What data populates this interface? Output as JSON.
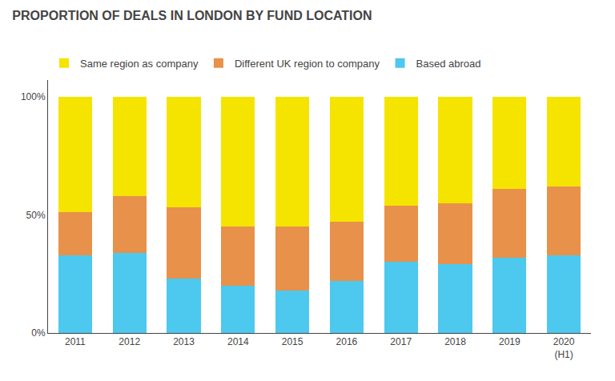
{
  "chart_data": {
    "type": "bar",
    "stacked": true,
    "title": "PROPORTION OF DEALS IN LONDON BY FUND LOCATION",
    "categories": [
      "2011",
      "2012",
      "2013",
      "2014",
      "2015",
      "2016",
      "2017",
      "2018",
      "2019",
      "2020\n(H1)"
    ],
    "series": [
      {
        "name": "Based abroad",
        "color": "#4DC8EE",
        "values": [
          33,
          34,
          23,
          20,
          18,
          22,
          30,
          29,
          32,
          33
        ]
      },
      {
        "name": "Different UK region to company",
        "color": "#E8914A",
        "values": [
          18,
          24,
          30,
          25,
          27,
          25,
          24,
          26,
          29,
          29
        ]
      },
      {
        "name": "Same region as company",
        "color": "#F5E400",
        "values": [
          49,
          42,
          47,
          55,
          55,
          53,
          46,
          45,
          39,
          38
        ]
      }
    ],
    "ylim": [
      0,
      107
    ],
    "yticks": [
      {
        "value": 0,
        "label": "0%"
      },
      {
        "value": 50,
        "label": "50%"
      },
      {
        "value": 100,
        "label": "100%"
      }
    ],
    "grid": false,
    "legend": "upper left"
  }
}
